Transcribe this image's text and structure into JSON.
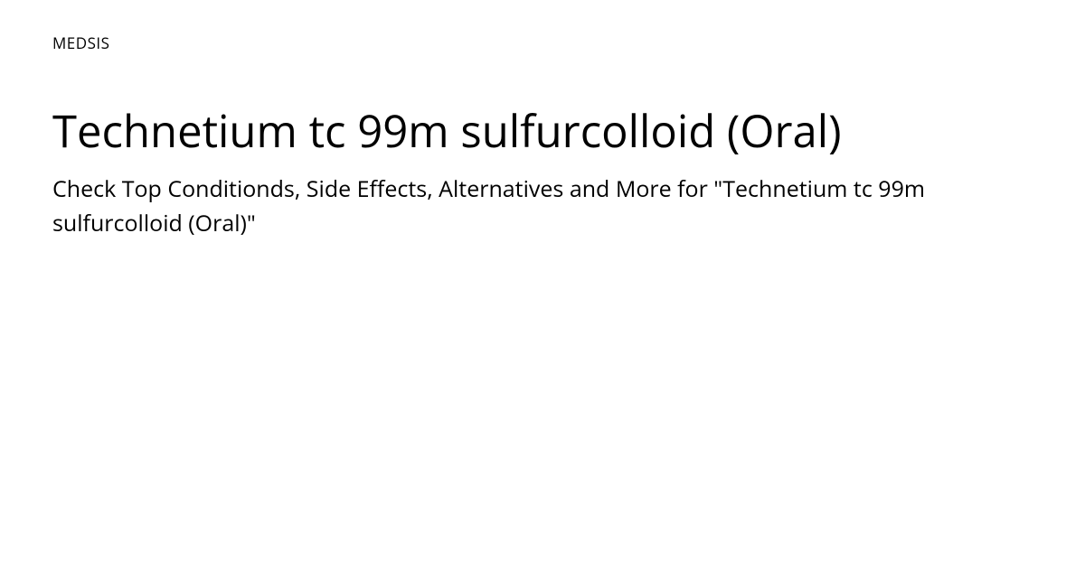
{
  "brand": "MEDSIS",
  "title": "Technetium tc 99m sulfurcolloid (Oral)",
  "subtitle": "Check Top Conditionds, Side Effects, Alternatives and More for \"Technetium tc 99m sulfurcolloid (Oral)\"",
  "colors": {
    "background": "#ffffff",
    "text": "#000000"
  },
  "typography": {
    "brand_fontsize": 17,
    "title_fontsize": 49,
    "subtitle_fontsize": 25
  }
}
